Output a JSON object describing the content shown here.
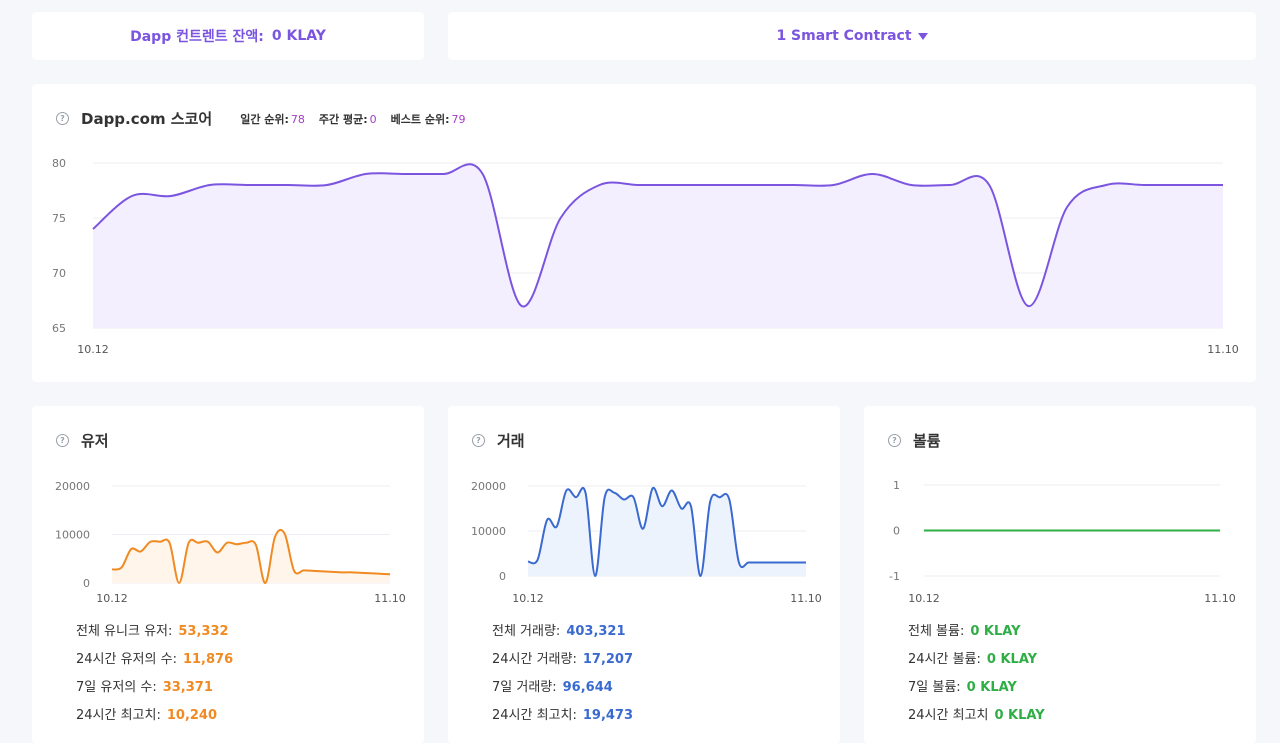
{
  "balance": {
    "label": "Dapp 컨트렌트 잔액:",
    "value": "0 KLAY"
  },
  "contract": {
    "label": "1 Smart Contract"
  },
  "score": {
    "title": "Dapp.com 스코어",
    "daily_rank_label": "일간 순위:",
    "daily_rank": "78",
    "weekly_avg_label": "주간 평균:",
    "weekly_avg": "0",
    "best_rank_label": "베스트 순위:",
    "best_rank": "79"
  },
  "users": {
    "title": "유저",
    "stats": [
      {
        "label": "전체 유니크 유저:",
        "value": "53,332"
      },
      {
        "label": "24시간 유저의 수:",
        "value": "11,876"
      },
      {
        "label": "7일 유저의 수:",
        "value": "33,371"
      },
      {
        "label": "24시간 최고치:",
        "value": "10,240"
      }
    ]
  },
  "transactions": {
    "title": "거래",
    "stats": [
      {
        "label": "전체 거래량:",
        "value": "403,321"
      },
      {
        "label": "24시간 거래량:",
        "value": "17,207"
      },
      {
        "label": "7일 거래량:",
        "value": "96,644"
      },
      {
        "label": "24시간 최고치:",
        "value": "19,473"
      }
    ]
  },
  "volume": {
    "title": "볼륨",
    "stats": [
      {
        "label": "전체 볼륨:",
        "value": "0 KLAY"
      },
      {
        "label": "24시간 볼륨:",
        "value": "0 KLAY"
      },
      {
        "label": "7일 볼륨:",
        "value": "0 KLAY"
      },
      {
        "label": "24시간 최고치",
        "value": "0 KLAY"
      }
    ]
  },
  "chart_data": [
    {
      "type": "area",
      "x": [
        "10.12",
        "10.13",
        "10.14",
        "10.15",
        "10.16",
        "10.17",
        "10.18",
        "10.19",
        "10.20",
        "10.21",
        "10.22",
        "10.23",
        "10.24",
        "10.25",
        "10.26",
        "10.27",
        "10.28",
        "10.29",
        "10.30",
        "10.31",
        "11.01",
        "11.02",
        "11.03",
        "11.04",
        "11.05",
        "11.06",
        "11.07",
        "11.08",
        "11.09",
        "11.10"
      ],
      "x_tick_labels": [
        "10.12",
        "11.10"
      ],
      "values": [
        74,
        77,
        77,
        78,
        78,
        78,
        78,
        79,
        79,
        79,
        79,
        67,
        75,
        78,
        78,
        78,
        78,
        78,
        78,
        78,
        79,
        78,
        78,
        78,
        67,
        76,
        78,
        78,
        78,
        78
      ],
      "yticks": [
        65,
        70,
        75,
        80
      ],
      "ylim": [
        65,
        80
      ],
      "color": "#7b55e0",
      "grid": true
    },
    {
      "type": "area",
      "x": [
        "10.12",
        "10.13",
        "10.14",
        "10.15",
        "10.16",
        "10.17",
        "10.18",
        "10.19",
        "10.20",
        "10.21",
        "10.22",
        "10.23",
        "10.24",
        "10.25",
        "10.26",
        "10.27",
        "10.28",
        "10.29",
        "10.30",
        "10.31",
        "11.01",
        "11.02",
        "11.03",
        "11.04",
        "11.05",
        "11.06",
        "11.07",
        "11.08",
        "11.09",
        "11.10"
      ],
      "x_tick_labels": [
        "10.12",
        "11.10"
      ],
      "values": [
        2800,
        3200,
        7000,
        6500,
        8500,
        8500,
        8300,
        0,
        8300,
        8300,
        8500,
        6300,
        8300,
        8000,
        8300,
        7900,
        0,
        9500,
        10200,
        2500,
        2600,
        2500,
        2400,
        2300,
        2200,
        2200,
        2100,
        2000,
        1900,
        1800
      ],
      "yticks": [
        0,
        10000,
        20000
      ],
      "ylim": [
        0,
        20000
      ],
      "color": "#f08a22",
      "grid": true
    },
    {
      "type": "area",
      "x": [
        "10.12",
        "10.13",
        "10.14",
        "10.15",
        "10.16",
        "10.17",
        "10.18",
        "10.19",
        "10.20",
        "10.21",
        "10.22",
        "10.23",
        "10.24",
        "10.25",
        "10.26",
        "10.27",
        "10.28",
        "10.29",
        "10.30",
        "10.31",
        "11.01",
        "11.02",
        "11.03",
        "11.04",
        "11.05",
        "11.06",
        "11.07",
        "11.08",
        "11.09",
        "11.10"
      ],
      "x_tick_labels": [
        "10.12",
        "11.10"
      ],
      "values": [
        3200,
        3600,
        12500,
        11000,
        19000,
        17500,
        18500,
        0,
        17500,
        18500,
        17000,
        17500,
        10500,
        19500,
        15500,
        19000,
        15000,
        15500,
        0,
        16500,
        17500,
        17000,
        3000,
        3000,
        3000,
        3000,
        3000,
        3000,
        3000,
        3000
      ],
      "yticks": [
        0,
        10000,
        20000
      ],
      "ylim": [
        0,
        20000
      ],
      "color": "#3a6ad0",
      "grid": true
    },
    {
      "type": "line",
      "x": [
        "10.12",
        "11.10"
      ],
      "x_tick_labels": [
        "10.12",
        "11.10"
      ],
      "values": [
        0,
        0
      ],
      "yticks": [
        -1,
        0,
        1
      ],
      "ylim": [
        -1,
        1
      ],
      "color": "#2fae46",
      "grid": true
    }
  ]
}
